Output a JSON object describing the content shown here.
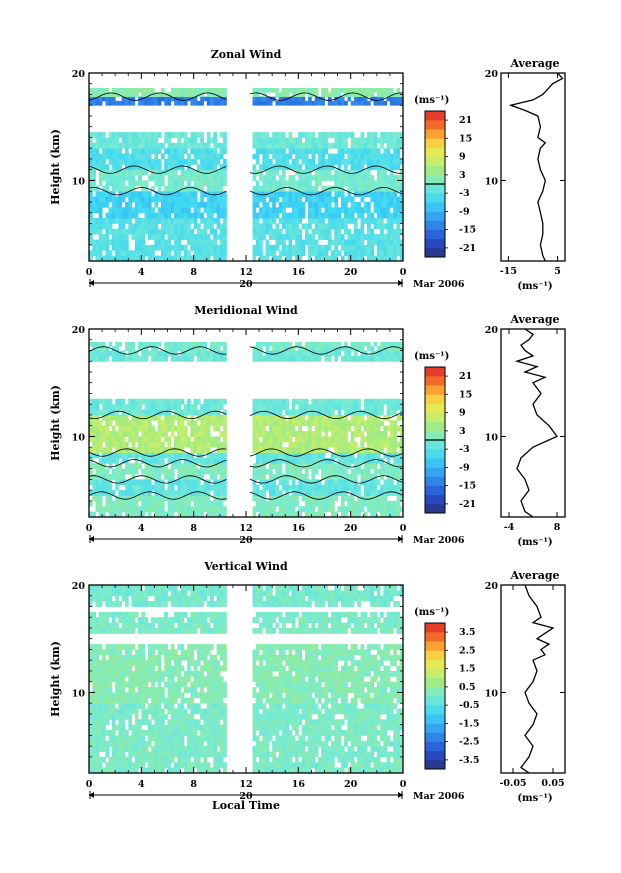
{
  "chart_data": [
    {
      "type": "heatmap",
      "title": "Zonal Wind",
      "ylabel": "Height (km)",
      "xlabel": "",
      "x_range": [
        0,
        24
      ],
      "y_range": [
        2.5,
        20
      ],
      "x_ticks": [
        "0",
        "4",
        "8",
        "12",
        "16",
        "20",
        "0"
      ],
      "x_tick_values": [
        0,
        4,
        8,
        12,
        16,
        20,
        24
      ],
      "y_ticks": [
        "10",
        "20"
      ],
      "y_tick_values": [
        10,
        20
      ],
      "date_label": "20",
      "date_label_x": 12,
      "month_label": "Mar 2006",
      "data_gap_hours": [
        10.5,
        12.3
      ],
      "colorbar": {
        "unit": "(ms⁻¹)",
        "range": [
          -24,
          24
        ],
        "tick_labels": [
          "21",
          "15",
          "9",
          "3",
          "-3",
          "-9",
          "-15",
          "-21"
        ],
        "tick_values": [
          21,
          15,
          9,
          3,
          -3,
          -9,
          -15,
          -21
        ],
        "zero_line": true
      },
      "bands": [
        {
          "y0": 2.5,
          "y1": 6.5,
          "value": -3
        },
        {
          "y0": 6.5,
          "y1": 9.0,
          "value": -6
        },
        {
          "y0": 9.0,
          "y1": 11.0,
          "value": 0
        },
        {
          "y0": 11.0,
          "y1": 13.0,
          "value": -4
        },
        {
          "y0": 13.0,
          "y1": 14.5,
          "value": -1
        },
        {
          "y0": 17.0,
          "y1": 17.8,
          "value": -14
        },
        {
          "y0": 17.8,
          "y1": 18.6,
          "value": 2
        }
      ],
      "profile": {
        "title": "Average",
        "xlabel": "(ms⁻¹)",
        "x_range": [
          -18,
          8
        ],
        "x_ticks": [
          "-15",
          "5"
        ],
        "x_tick_values": [
          -15,
          5
        ],
        "y_ticks": [
          "10",
          "20"
        ],
        "y_tick_values": [
          10,
          20
        ],
        "y": [
          2.5,
          3,
          4,
          5,
          6,
          7,
          8,
          9,
          10,
          11,
          12,
          13,
          13.5,
          14,
          15,
          16,
          16.5,
          17,
          17.5,
          18,
          18.5,
          19,
          19.5,
          20
        ],
        "x": [
          0,
          -1,
          -2,
          -1,
          -1,
          -2,
          -3,
          -1,
          0,
          -2,
          -3,
          -2,
          0,
          -3,
          -2,
          -3,
          -8,
          -14,
          -5,
          -1,
          1,
          3,
          7,
          5
        ]
      }
    },
    {
      "type": "heatmap",
      "title": "Meridional Wind",
      "ylabel": "Height (km)",
      "xlabel": "",
      "x_range": [
        0,
        24
      ],
      "y_range": [
        2.5,
        20
      ],
      "x_ticks": [
        "0",
        "4",
        "8",
        "12",
        "16",
        "20",
        "0"
      ],
      "x_tick_values": [
        0,
        4,
        8,
        12,
        16,
        20,
        24
      ],
      "y_ticks": [
        "10",
        "20"
      ],
      "y_tick_values": [
        10,
        20
      ],
      "date_label": "20",
      "date_label_x": 12,
      "month_label": "Mar 2006",
      "data_gap_hours": [
        10.5,
        12.3
      ],
      "colorbar": {
        "unit": "(ms⁻¹)",
        "range": [
          -24,
          24
        ],
        "tick_labels": [
          "21",
          "15",
          "9",
          "3",
          "-3",
          "-9",
          "-15",
          "-21"
        ],
        "tick_values": [
          21,
          15,
          9,
          3,
          -3,
          -9,
          -15,
          -21
        ],
        "zero_line": true
      },
      "bands": [
        {
          "y0": 2.5,
          "y1": 4.5,
          "value": 1
        },
        {
          "y0": 4.5,
          "y1": 6.0,
          "value": -2
        },
        {
          "y0": 6.0,
          "y1": 7.5,
          "value": 1
        },
        {
          "y0": 7.5,
          "y1": 8.5,
          "value": -2
        },
        {
          "y0": 8.5,
          "y1": 12.0,
          "value": 6
        },
        {
          "y0": 12.0,
          "y1": 13.5,
          "value": -1
        },
        {
          "y0": 17.0,
          "y1": 18.0,
          "value": -1
        },
        {
          "y0": 18.0,
          "y1": 18.8,
          "value": 0
        }
      ],
      "profile": {
        "title": "Average",
        "xlabel": "(ms⁻¹)",
        "x_range": [
          -6,
          10
        ],
        "x_ticks": [
          "-4",
          "8"
        ],
        "x_tick_values": [
          -4,
          8
        ],
        "y_ticks": [
          "10",
          "20"
        ],
        "y_tick_values": [
          10,
          20
        ],
        "y": [
          2.5,
          3,
          4,
          5,
          6,
          7,
          8,
          9,
          10,
          11,
          12,
          13,
          14,
          15,
          15.5,
          16,
          16.5,
          17,
          17.5,
          18,
          18.5,
          19,
          19.5,
          20
        ],
        "x": [
          2,
          0,
          -1,
          1,
          0,
          -2,
          -1,
          2,
          8,
          6,
          3,
          2,
          4,
          2,
          5,
          0,
          3,
          -2,
          2,
          0,
          -1,
          1,
          2,
          0
        ]
      }
    },
    {
      "type": "heatmap",
      "title": "Vertical Wind",
      "ylabel": "Height (km)",
      "xlabel": "Local Time",
      "x_range": [
        0,
        24
      ],
      "y_range": [
        2.5,
        20
      ],
      "x_ticks": [
        "0",
        "4",
        "8",
        "12",
        "16",
        "20",
        "0"
      ],
      "x_tick_values": [
        0,
        4,
        8,
        12,
        16,
        20,
        24
      ],
      "y_ticks": [
        "10",
        "20"
      ],
      "y_tick_values": [
        10,
        20
      ],
      "date_label": "20",
      "date_label_x": 12,
      "month_label": "Mar 2006",
      "data_gap_hours": [
        10.5,
        12.3
      ],
      "colorbar": {
        "unit": "(ms⁻¹)",
        "range": [
          -4,
          4
        ],
        "tick_labels": [
          "3.5",
          "2.5",
          "1.5",
          "0.5",
          "-0.5",
          "-1.5",
          "-2.5",
          "-3.5"
        ],
        "tick_values": [
          3.5,
          2.5,
          1.5,
          0.5,
          -0.5,
          -1.5,
          -2.5,
          -3.5
        ],
        "zero_line": false
      },
      "bands": [
        {
          "y0": 2.5,
          "y1": 9.0,
          "value": 0.1
        },
        {
          "y0": 9.0,
          "y1": 14.5,
          "value": 0.3
        },
        {
          "y0": 15.5,
          "y1": 17.5,
          "value": 0.1
        },
        {
          "y0": 18.0,
          "y1": 20.0,
          "value": 0.0
        }
      ],
      "profile": {
        "title": "Average",
        "xlabel": "(ms⁻¹)",
        "x_range": [
          -0.08,
          0.08
        ],
        "x_ticks": [
          "-0.05",
          "0.05"
        ],
        "x_tick_values": [
          -0.05,
          0.05
        ],
        "y_ticks": [
          "10",
          "20"
        ],
        "y_tick_values": [
          10,
          20
        ],
        "y": [
          2.5,
          3,
          4,
          5,
          6,
          7,
          8,
          9,
          10,
          11,
          12,
          13,
          13.5,
          14,
          14.5,
          15,
          15.5,
          16,
          16.5,
          17,
          18,
          19,
          20
        ],
        "x": [
          -0.01,
          -0.03,
          -0.01,
          0.0,
          -0.02,
          0.0,
          0.01,
          -0.01,
          -0.02,
          0.0,
          0.01,
          0.0,
          0.03,
          0.02,
          0.04,
          0.01,
          0.03,
          0.05,
          0.0,
          0.02,
          0.01,
          -0.01,
          -0.02
        ]
      }
    }
  ]
}
